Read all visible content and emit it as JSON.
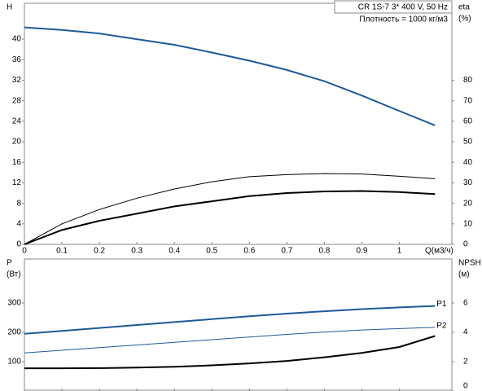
{
  "chart_data": [
    {
      "type": "line",
      "info": [
        "CR 1S-7    3* 400 V, 50 Hz",
        "Плотность = 1000 кг/м3"
      ],
      "y_label": [
        "H"
      ],
      "y2_label": [
        "eta",
        "(%)"
      ],
      "x_label": "Q(м3/ч)",
      "x": [
        0,
        0.1,
        0.2,
        0.3,
        0.4,
        0.5,
        0.6,
        0.7,
        0.8,
        0.9,
        1.0,
        1.095
      ],
      "xlim": [
        0,
        1.14
      ],
      "xticks": [
        0,
        0.1,
        0.2,
        0.3,
        0.4,
        0.5,
        0.6,
        0.7,
        0.8,
        0.9,
        1
      ],
      "ylim": [
        0,
        47
      ],
      "yticks": [
        0,
        4,
        8,
        12,
        16,
        20,
        24,
        28,
        32,
        36,
        40
      ],
      "y2lim": [
        0,
        117.5
      ],
      "y2ticks": [
        0,
        10,
        20,
        30,
        40,
        50,
        60,
        70,
        80
      ],
      "series": [
        {
          "color": "#1f5a96",
          "width": 2,
          "values": [
            42.3,
            41.8,
            41.1,
            40,
            38.9,
            37.4,
            35.8,
            34,
            31.8,
            29,
            26,
            23.2
          ]
        },
        {
          "color": "#000000",
          "width": 1,
          "axis": "y2",
          "values": [
            0,
            10,
            17,
            22.5,
            27,
            30.5,
            33,
            34,
            34.5,
            34.3,
            33.2,
            32
          ]
        },
        {
          "color": "#000000",
          "width": 2,
          "axis": "y2",
          "values": [
            0,
            7,
            11.5,
            15,
            18.5,
            21,
            23.5,
            25,
            25.8,
            26,
            25.5,
            24.5
          ]
        }
      ]
    },
    {
      "type": "line",
      "y_label": [
        "P",
        "(Вт)"
      ],
      "y2_label": [
        "NPSH",
        "(м)"
      ],
      "x": [
        0,
        0.1,
        0.2,
        0.3,
        0.4,
        0.5,
        0.6,
        0.7,
        0.8,
        0.9,
        1.0,
        1.095
      ],
      "xlim": [
        0,
        1.14
      ],
      "xticks": [
        0,
        0.1,
        0.2,
        0.3,
        0.4,
        0.5,
        0.6,
        0.7,
        0.8,
        0.9,
        1
      ],
      "ylim": [
        0,
        450
      ],
      "yticks": [
        100,
        200,
        300
      ],
      "y2lim": [
        0,
        9
      ],
      "y2ticks": [
        0,
        2,
        4,
        6
      ],
      "series": [
        {
          "name": "P1",
          "color": "#1f5a96",
          "width": 2,
          "values": [
            195,
            205,
            215,
            225,
            235,
            245,
            255,
            264,
            272,
            279,
            285,
            290
          ]
        },
        {
          "name": "P2",
          "color": "#1f5a96",
          "width": 1,
          "values": [
            130,
            139,
            148,
            157,
            166,
            175,
            184,
            193,
            201,
            208,
            213,
            217
          ]
        },
        {
          "color": "#000000",
          "width": 2,
          "axis": "y2",
          "values": [
            1.55,
            1.55,
            1.56,
            1.6,
            1.65,
            1.75,
            1.88,
            2.05,
            2.3,
            2.6,
            3.0,
            3.75
          ]
        }
      ]
    }
  ]
}
